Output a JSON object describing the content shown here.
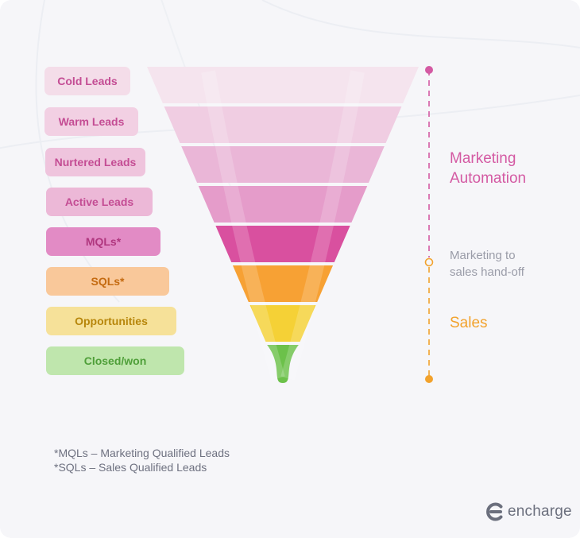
{
  "stages": [
    {
      "label": "Cold Leads",
      "fill": "#f4dde9",
      "text": "#c44d94",
      "color": "#f5e4ee"
    },
    {
      "label": "Warm Leads",
      "fill": "#f2d0e3",
      "text": "#c44d94",
      "color": "#f0cde2"
    },
    {
      "label": "Nurtered Leads",
      "fill": "#efc4dd",
      "text": "#c44d94",
      "color": "#eab6d7"
    },
    {
      "label": "Active Leads",
      "fill": "#ecb8d7",
      "text": "#c44d94",
      "color": "#e59cca"
    },
    {
      "label": "MQLs*",
      "fill": "#e28bc5",
      "text": "#b0377f",
      "color": "#d9509f"
    },
    {
      "label": "SQLs*",
      "fill": "#f9c89a",
      "text": "#c46a10",
      "color": "#f7a134"
    },
    {
      "label": "Opportunities",
      "fill": "#f6e199",
      "text": "#b7860b",
      "color": "#f5d136"
    },
    {
      "label": "Closed/won",
      "fill": "#bfe6ad",
      "text": "#4f9f39",
      "color": "#6cc14a"
    }
  ],
  "side": {
    "marketing_automation": [
      "Marketing",
      "Automation"
    ],
    "handoff": [
      "Marketing to",
      "sales hand-off"
    ],
    "sales": "Sales"
  },
  "colors": {
    "marketing": "#d45aa3",
    "handoff": "#9a9ca8",
    "sales": "#f2a22c"
  },
  "footnotes": [
    "*MQLs – Marketing Qualified Leads",
    "*SQLs – Sales Qualified Leads"
  ],
  "logo": {
    "text": "encharge",
    "icon": "encharge-logo-icon"
  }
}
